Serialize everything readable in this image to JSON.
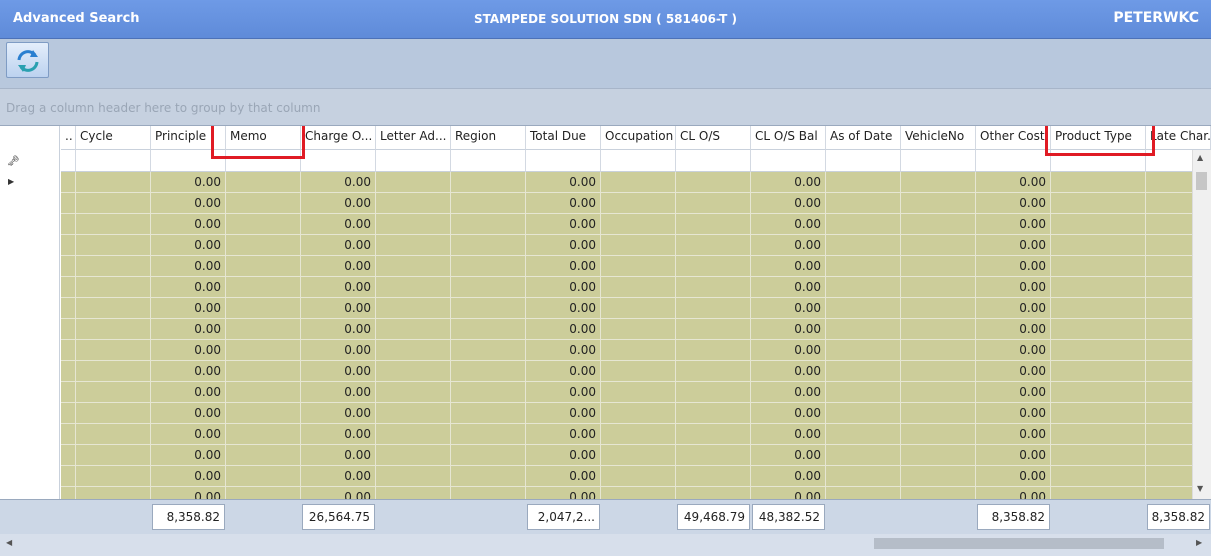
{
  "window": {
    "title": "Advanced Search",
    "company": "STAMPEDE SOLUTION SDN ( 581406-T )",
    "user": "PETERWKC"
  },
  "toolbar": {
    "refresh_icon": "refresh-icon"
  },
  "group_panel": {
    "hint": "Drag a column header here to group by that column"
  },
  "grid": {
    "columns": [
      "..",
      "Cycle",
      "Principle",
      "Memo",
      "Charge O...",
      "Letter Ad...",
      "Region",
      "Total Due",
      "Occupation",
      "CL O/S",
      "CL O/S Bal",
      "As of Date",
      "VehicleNo",
      "Other Cost",
      "Product Type",
      "Late Char..."
    ],
    "row_values": {
      "Principle": "0.00",
      "Charge O...": "0.00",
      "Total Due": "0.00",
      "CL O/S Bal": "0.00",
      "Other Cost": "0.00"
    },
    "row_count_visible": 16,
    "highlighted_columns": [
      "Memo",
      "Product Type"
    ]
  },
  "footer": {
    "totals": {
      "Principle": "8,358.82",
      "Charge O...": "26,564.75",
      "Total Due": "2,047,2...",
      "CL O/S": "49,468.79",
      "CL O/S Bal": "48,382.52",
      "Other Cost": "8,358.82",
      "Late Char...": "8,358.82"
    }
  },
  "colors": {
    "row_background": "#cccd9a",
    "title_bar": "#6e9ae6",
    "highlight": "#e01b24"
  }
}
